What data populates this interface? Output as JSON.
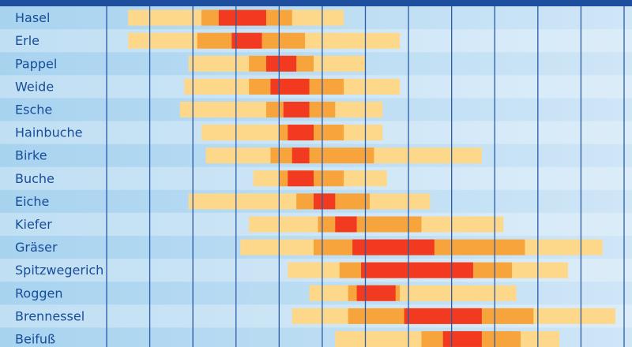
{
  "chart_data": {
    "type": "range-bar",
    "xlim": [
      0,
      12
    ],
    "xticks": [
      0,
      1,
      2,
      3,
      4,
      5,
      6,
      7,
      8,
      9,
      10,
      11,
      12
    ],
    "grid": true,
    "colors": {
      "light": "#fed88a",
      "medium": "#f8a43c",
      "strong": "#f13a20"
    },
    "rows": [
      {
        "name": "Hasel",
        "light": [
          0.5,
          5.5
        ],
        "medium": [
          2.2,
          4.3
        ],
        "strong": [
          2.6,
          3.7
        ]
      },
      {
        "name": "Erle",
        "light": [
          0.5,
          6.8
        ],
        "medium": [
          2.1,
          4.6
        ],
        "strong": [
          2.9,
          3.6
        ]
      },
      {
        "name": "Pappel",
        "light": [
          1.9,
          6.0
        ],
        "medium": [
          3.3,
          4.8
        ],
        "strong": [
          3.7,
          4.4
        ]
      },
      {
        "name": "Weide",
        "light": [
          1.8,
          6.8
        ],
        "medium": [
          3.3,
          5.5
        ],
        "strong": [
          3.8,
          4.7
        ]
      },
      {
        "name": "Esche",
        "light": [
          1.7,
          6.4
        ],
        "medium": [
          3.7,
          5.3
        ],
        "strong": [
          4.1,
          4.7
        ]
      },
      {
        "name": "Hainbuche",
        "light": [
          2.2,
          6.4
        ],
        "medium": [
          4.0,
          5.5
        ],
        "strong": [
          4.2,
          4.8
        ]
      },
      {
        "name": "Birke",
        "light": [
          2.3,
          8.7
        ],
        "medium": [
          3.8,
          6.2
        ],
        "strong": [
          4.3,
          4.7
        ]
      },
      {
        "name": "Buche",
        "light": [
          3.4,
          6.5
        ],
        "medium": [
          4.0,
          5.5
        ],
        "strong": [
          4.2,
          4.8
        ]
      },
      {
        "name": "Eiche",
        "light": [
          1.9,
          7.5
        ],
        "medium": [
          4.4,
          6.1
        ],
        "strong": [
          4.8,
          5.3
        ]
      },
      {
        "name": "Kiefer",
        "light": [
          3.3,
          9.2
        ],
        "medium": [
          4.9,
          7.3
        ],
        "strong": [
          5.3,
          5.8
        ]
      },
      {
        "name": "Gräser",
        "light": [
          3.1,
          11.5
        ],
        "medium": [
          4.8,
          9.7
        ],
        "strong": [
          5.7,
          7.6
        ]
      },
      {
        "name": "Spitzwegerich",
        "light": [
          4.2,
          10.7
        ],
        "medium": [
          5.4,
          9.4
        ],
        "strong": [
          5.9,
          8.5
        ]
      },
      {
        "name": "Roggen",
        "light": [
          4.7,
          9.5
        ],
        "medium": [
          5.6,
          6.8
        ],
        "strong": [
          5.8,
          6.7
        ]
      },
      {
        "name": "Brennessel",
        "light": [
          4.3,
          11.8
        ],
        "medium": [
          5.6,
          9.9
        ],
        "strong": [
          6.9,
          8.7
        ]
      },
      {
        "name": "Beifuß",
        "light": [
          5.3,
          10.5
        ],
        "medium": [
          7.3,
          9.6
        ],
        "strong": [
          7.8,
          8.7
        ]
      }
    ]
  }
}
